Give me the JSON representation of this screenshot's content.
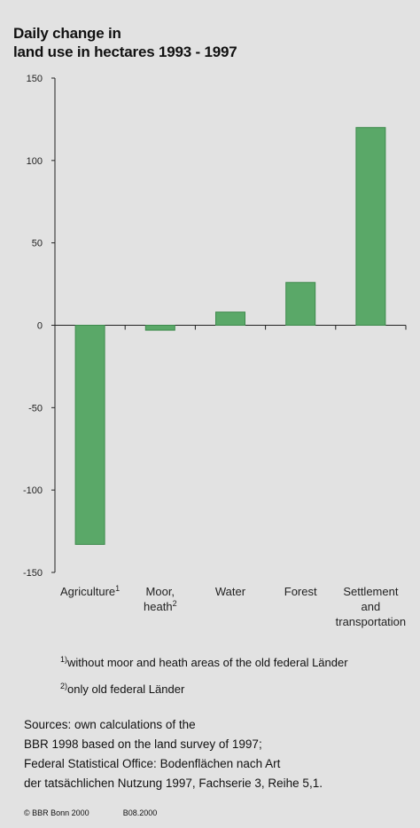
{
  "title_lines": [
    "Daily change in",
    "land use in hectares 1993 - 1997"
  ],
  "chart_data": {
    "type": "bar",
    "title": "Daily change in land use in hectares 1993 - 1997",
    "categories": [
      "Agriculture",
      "Moor, heath",
      "Water",
      "Forest",
      "Settlement and transportation"
    ],
    "category_labels": [
      {
        "lines": [
          "Agriculture"
        ],
        "sup": "1"
      },
      {
        "lines": [
          "Moor,",
          "heath"
        ],
        "sup": "2"
      },
      {
        "lines": [
          "Water"
        ],
        "sup": ""
      },
      {
        "lines": [
          "Forest"
        ],
        "sup": ""
      },
      {
        "lines": [
          "Settlement",
          "and",
          "transportation"
        ],
        "sup": ""
      }
    ],
    "values": [
      -133,
      -3,
      8,
      26,
      120
    ],
    "ylim": [
      -150,
      150
    ],
    "yticks": [
      150,
      100,
      50,
      0,
      -50,
      -100,
      -150
    ],
    "ytick_labels": [
      "150",
      "100",
      "50",
      "0",
      "-50",
      "-100",
      "-150"
    ],
    "xlabel": "",
    "ylabel": "",
    "grid": false,
    "bar_color": "#5aa868",
    "bar_edge_color": "#3e8a4d"
  },
  "footnotes": [
    {
      "sup": "1)",
      "text": "without moor and heath areas of the old federal Länder"
    },
    {
      "sup": "2)",
      "text": "only old federal Länder"
    }
  ],
  "sources": [
    "Sources: own calculations of the",
    "BBR 1998 based on the land survey of 1997;",
    "Federal Statistical Office: Bodenflächen nach Art",
    "der tatsächlichen Nutzung 1997, Fachserie 3, Reihe 5,1."
  ],
  "credit": {
    "text": "© BBR Bonn 2000",
    "code": "B08.2000"
  }
}
